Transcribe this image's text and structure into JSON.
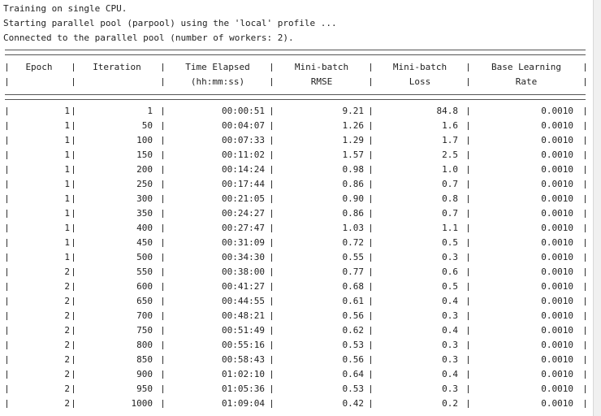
{
  "console": {
    "lines": [
      "Training on single CPU.",
      "Starting parallel pool (parpool) using the 'local' profile ...",
      "Connected to the parallel pool (number of workers: 2)."
    ],
    "headers": {
      "epoch": [
        "Epoch",
        ""
      ],
      "iteration": [
        "Iteration",
        ""
      ],
      "time": [
        "Time Elapsed",
        "(hh:mm:ss)"
      ],
      "rmse": [
        "Mini-batch",
        "RMSE"
      ],
      "loss": [
        "Mini-batch",
        "Loss"
      ],
      "lr": [
        "Base Learning",
        "Rate"
      ]
    },
    "rows": [
      [
        "1",
        "1",
        "00:00:51",
        "9.21",
        "84.8",
        "0.0010"
      ],
      [
        "1",
        "50",
        "00:04:07",
        "1.26",
        "1.6",
        "0.0010"
      ],
      [
        "1",
        "100",
        "00:07:33",
        "1.29",
        "1.7",
        "0.0010"
      ],
      [
        "1",
        "150",
        "00:11:02",
        "1.57",
        "2.5",
        "0.0010"
      ],
      [
        "1",
        "200",
        "00:14:24",
        "0.98",
        "1.0",
        "0.0010"
      ],
      [
        "1",
        "250",
        "00:17:44",
        "0.86",
        "0.7",
        "0.0010"
      ],
      [
        "1",
        "300",
        "00:21:05",
        "0.90",
        "0.8",
        "0.0010"
      ],
      [
        "1",
        "350",
        "00:24:27",
        "0.86",
        "0.7",
        "0.0010"
      ],
      [
        "1",
        "400",
        "00:27:47",
        "1.03",
        "1.1",
        "0.0010"
      ],
      [
        "1",
        "450",
        "00:31:09",
        "0.72",
        "0.5",
        "0.0010"
      ],
      [
        "1",
        "500",
        "00:34:30",
        "0.55",
        "0.3",
        "0.0010"
      ],
      [
        "2",
        "550",
        "00:38:00",
        "0.77",
        "0.6",
        "0.0010"
      ],
      [
        "2",
        "600",
        "00:41:27",
        "0.68",
        "0.5",
        "0.0010"
      ],
      [
        "2",
        "650",
        "00:44:55",
        "0.61",
        "0.4",
        "0.0010"
      ],
      [
        "2",
        "700",
        "00:48:21",
        "0.56",
        "0.3",
        "0.0010"
      ],
      [
        "2",
        "750",
        "00:51:49",
        "0.62",
        "0.4",
        "0.0010"
      ],
      [
        "2",
        "800",
        "00:55:16",
        "0.53",
        "0.3",
        "0.0010"
      ],
      [
        "2",
        "850",
        "00:58:43",
        "0.56",
        "0.3",
        "0.0010"
      ],
      [
        "2",
        "900",
        "01:02:10",
        "0.64",
        "0.4",
        "0.0010"
      ],
      [
        "2",
        "950",
        "01:05:36",
        "0.53",
        "0.3",
        "0.0010"
      ],
      [
        "2",
        "1000",
        "01:09:04",
        "0.42",
        "0.2",
        "0.0010"
      ]
    ]
  }
}
